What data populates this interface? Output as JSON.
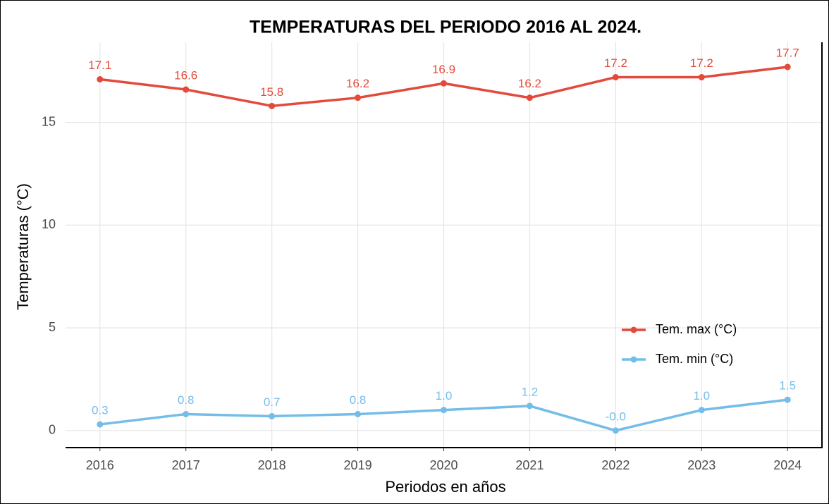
{
  "chart_data": {
    "type": "line",
    "title": "TEMPERATURAS DEL PERIODO 2016 AL 2024.",
    "x_label": "Periodos en años",
    "y_label": "Temperaturas (°C)",
    "x": [
      2016,
      2017,
      2018,
      2019,
      2020,
      2021,
      2022,
      2023,
      2024
    ],
    "xlim": [
      2015.6,
      2024.4
    ],
    "xticks": [
      2016,
      2017,
      2018,
      2019,
      2020,
      2021,
      2022,
      2023,
      2024
    ],
    "ylim": [
      -0.83,
      18.9
    ],
    "yticks": [
      0,
      5,
      10,
      15
    ],
    "grid": true,
    "legend": "bottom-right",
    "series": [
      {
        "name": "Tem. max (°C)",
        "color": "#e34a3b",
        "values": [
          17.1,
          16.6,
          15.8,
          16.2,
          16.9,
          16.2,
          17.2,
          17.2,
          17.7
        ],
        "value_labels": [
          "17.1",
          "16.6",
          "15.8",
          "16.2",
          "16.9",
          "16.2",
          "17.2",
          "17.2",
          "17.7"
        ]
      },
      {
        "name": "Tem. min (°C)",
        "color": "#74bde9",
        "values": [
          0.3,
          0.8,
          0.7,
          0.8,
          1.0,
          1.2,
          0,
          1.0,
          1.5
        ],
        "value_labels": [
          "0.3",
          "0.8",
          "0.7",
          "0.8",
          "1.0",
          "1.2",
          "-0.0",
          "1.0",
          "1.5"
        ]
      }
    ]
  }
}
